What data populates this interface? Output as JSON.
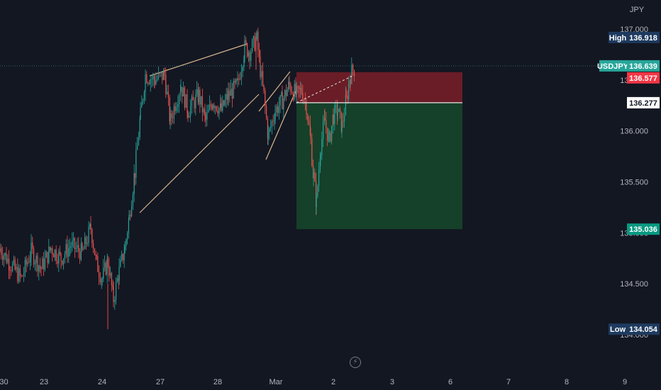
{
  "currency": "JPY",
  "symbol": "USDJPY",
  "colors": {
    "background": "#131722",
    "up": "#26a69a",
    "down": "#ef5350",
    "text": "#b2b5be",
    "stop_zone": "#7a1f27",
    "target_zone": "#16452a",
    "pattern_lines": "#d8b58c",
    "symbol_tag": "#26a69a",
    "stop_tag": "#f23645",
    "target_tag": "#089981",
    "extreme_tag": "#1e3a5f"
  },
  "labels": {
    "high": {
      "label": "High",
      "value": "136.918"
    },
    "low": {
      "label": "Low",
      "value": "134.054"
    },
    "last": {
      "label": "USDJPY",
      "value": "136.639"
    },
    "stop": {
      "value": "136.577"
    },
    "entry": {
      "value": "136.277"
    },
    "target": {
      "value": "135.036"
    }
  },
  "icons": {
    "replay": "flash-icon"
  },
  "chart_data": {
    "type": "candlestick",
    "y_axis": {
      "range": [
        133.9,
        137.2
      ],
      "ticks": [
        "137.000",
        "136.500",
        "136.000",
        "135.500",
        "135.000",
        "134.500",
        "134.000"
      ],
      "tick_values": [
        137.0,
        136.5,
        136.0,
        135.5,
        135.0,
        134.5,
        134.0
      ]
    },
    "x_axis": {
      "ticks": [
        ":30",
        "23",
        "24",
        "27",
        "28",
        "Mar",
        "2",
        "3",
        "6",
        "7",
        "8",
        "9"
      ]
    },
    "price_path": [
      [
        "22 22:30",
        134.85
      ],
      [
        "23 00",
        134.7
      ],
      [
        "23 03",
        134.55
      ],
      [
        "23 06",
        134.82
      ],
      [
        "23 09",
        134.65
      ],
      [
        "23 12",
        134.85
      ],
      [
        "23 15",
        134.75
      ],
      [
        "23 18",
        134.88
      ],
      [
        "24 00",
        134.8
      ],
      [
        "24 03",
        135.05
      ],
      [
        "24 05",
        134.7
      ],
      [
        "24 08",
        134.55
      ],
      [
        "24 10",
        134.72
      ],
      [
        "24 13",
        134.35
      ],
      [
        "24 15",
        134.62
      ],
      [
        "24 18",
        134.85
      ],
      [
        "24 21",
        135.15
      ],
      [
        "24 23",
        135.6
      ],
      [
        "27 01",
        136.15
      ],
      [
        "27 03",
        136.55
      ],
      [
        "27 06",
        136.5
      ],
      [
        "27 09",
        136.55
      ],
      [
        "27 12",
        136.1
      ],
      [
        "27 15",
        136.45
      ],
      [
        "27 18",
        136.2
      ],
      [
        "27 21",
        136.35
      ],
      [
        "28 00",
        136.1
      ],
      [
        "28 03",
        136.3
      ],
      [
        "28 06",
        136.2
      ],
      [
        "28 09",
        136.35
      ],
      [
        "28 12",
        136.45
      ],
      [
        "28 15",
        136.82
      ],
      [
        "28 18",
        136.78
      ],
      [
        "28 20",
        136.9
      ],
      [
        "28 22",
        136.6
      ],
      [
        "Mar 00",
        136.35
      ],
      [
        "Mar 02",
        135.95
      ],
      [
        "Mar 04",
        136.2
      ],
      [
        "Mar 06",
        136.3
      ],
      [
        "Mar 08",
        136.45
      ],
      [
        "Mar 10",
        136.35
      ],
      [
        "Mar 12",
        136.4
      ],
      [
        "Mar 14",
        136.25
      ],
      [
        "Mar 16",
        135.9
      ],
      [
        "Mar 18",
        135.55
      ],
      [
        "Mar 20",
        135.3
      ],
      [
        "Mar 22",
        135.85
      ],
      [
        "2 00",
        136.1
      ],
      [
        "2 02",
        135.9
      ],
      [
        "2 04",
        136.15
      ],
      [
        "2 06",
        136.2
      ],
      [
        "2 08",
        136.05
      ],
      [
        "2 10",
        136.3
      ],
      [
        "2 12",
        136.55
      ],
      [
        "2 14",
        136.639
      ]
    ],
    "range_high": 136.918,
    "range_low": 134.054,
    "short_position": {
      "entry": 136.277,
      "stop": 136.577,
      "target": 135.036
    },
    "pattern": "rising wedge"
  }
}
